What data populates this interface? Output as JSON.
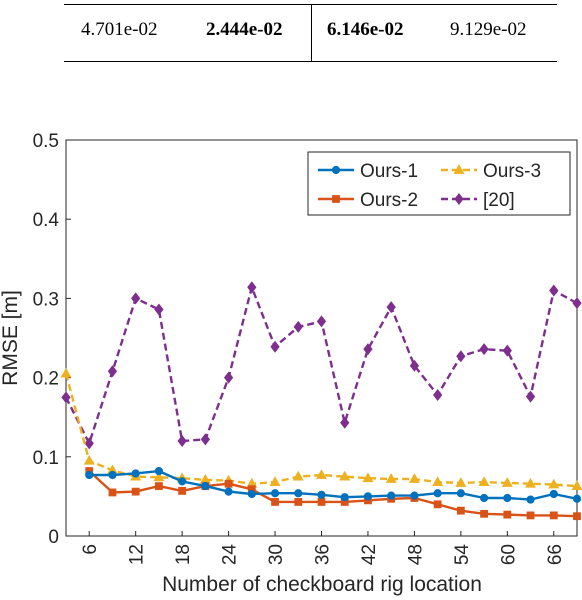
{
  "table": {
    "cells": [
      {
        "text": "4.701e-02",
        "bold": false
      },
      {
        "text": "2.444e-02",
        "bold": true
      },
      {
        "text": "6.146e-02",
        "bold": true
      },
      {
        "text": "9.129e-02",
        "bold": false
      }
    ]
  },
  "chart_data": {
    "type": "line",
    "xlabel": "Number of checkboard rig location",
    "ylabel": "RMSE [m]",
    "xlim": [
      3,
      69
    ],
    "ylim": [
      0,
      0.5
    ],
    "xticks": [
      6,
      12,
      18,
      24,
      30,
      36,
      42,
      48,
      54,
      60,
      66
    ],
    "yticks": [
      0,
      0.1,
      0.2,
      0.3,
      0.4,
      0.5
    ],
    "ytick_labels": [
      "0",
      "0.1",
      "0.2",
      "0.3",
      "0.4",
      "0.5"
    ],
    "grid": false,
    "legend_position": "top-right",
    "series": [
      {
        "name": "Ours-1",
        "color": "#0072BD",
        "marker": "circle",
        "dash": "solid",
        "x": [
          6,
          9,
          12,
          15,
          18,
          21,
          24,
          27,
          30,
          33,
          36,
          39,
          42,
          45,
          48,
          51,
          54,
          57,
          60,
          63,
          66,
          69
        ],
        "y": [
          0.077,
          0.077,
          0.079,
          0.082,
          0.069,
          0.063,
          0.056,
          0.053,
          0.054,
          0.054,
          0.052,
          0.049,
          0.05,
          0.051,
          0.051,
          0.054,
          0.054,
          0.048,
          0.048,
          0.046,
          0.053,
          0.047
        ]
      },
      {
        "name": "Ours-2",
        "color": "#D95319",
        "marker": "square",
        "dash": "solid",
        "x": [
          6,
          9,
          12,
          15,
          18,
          21,
          24,
          27,
          30,
          33,
          36,
          39,
          42,
          45,
          48,
          51,
          54,
          57,
          60,
          63,
          66,
          69
        ],
        "y": [
          0.082,
          0.055,
          0.056,
          0.063,
          0.057,
          0.063,
          0.066,
          0.059,
          0.043,
          0.043,
          0.043,
          0.043,
          0.045,
          0.047,
          0.048,
          0.04,
          0.032,
          0.028,
          0.027,
          0.026,
          0.026,
          0.025
        ]
      },
      {
        "name": "Ours-3",
        "color": "#EDB120",
        "marker": "triangle",
        "dash": "dashed",
        "x": [
          3,
          6,
          9,
          12,
          15,
          18,
          21,
          24,
          27,
          30,
          33,
          36,
          39,
          42,
          45,
          48,
          51,
          54,
          57,
          60,
          63,
          66,
          69
        ],
        "y": [
          0.205,
          0.095,
          0.083,
          0.075,
          0.074,
          0.073,
          0.071,
          0.07,
          0.066,
          0.068,
          0.075,
          0.077,
          0.075,
          0.073,
          0.072,
          0.072,
          0.068,
          0.067,
          0.068,
          0.067,
          0.066,
          0.065,
          0.063
        ]
      },
      {
        "name": "[20]",
        "color": "#7E2F8E",
        "marker": "diamond",
        "dash": "dashed",
        "x": [
          3,
          6,
          9,
          12,
          15,
          18,
          21,
          24,
          27,
          30,
          33,
          36,
          39,
          42,
          45,
          48,
          51,
          54,
          57,
          60,
          63,
          66,
          69
        ],
        "y": [
          0.175,
          0.117,
          0.208,
          0.3,
          0.286,
          0.12,
          0.122,
          0.2,
          0.314,
          0.239,
          0.264,
          0.271,
          0.143,
          0.236,
          0.289,
          0.215,
          0.178,
          0.227,
          0.236,
          0.234,
          0.176,
          0.31,
          0.294
        ]
      }
    ]
  }
}
